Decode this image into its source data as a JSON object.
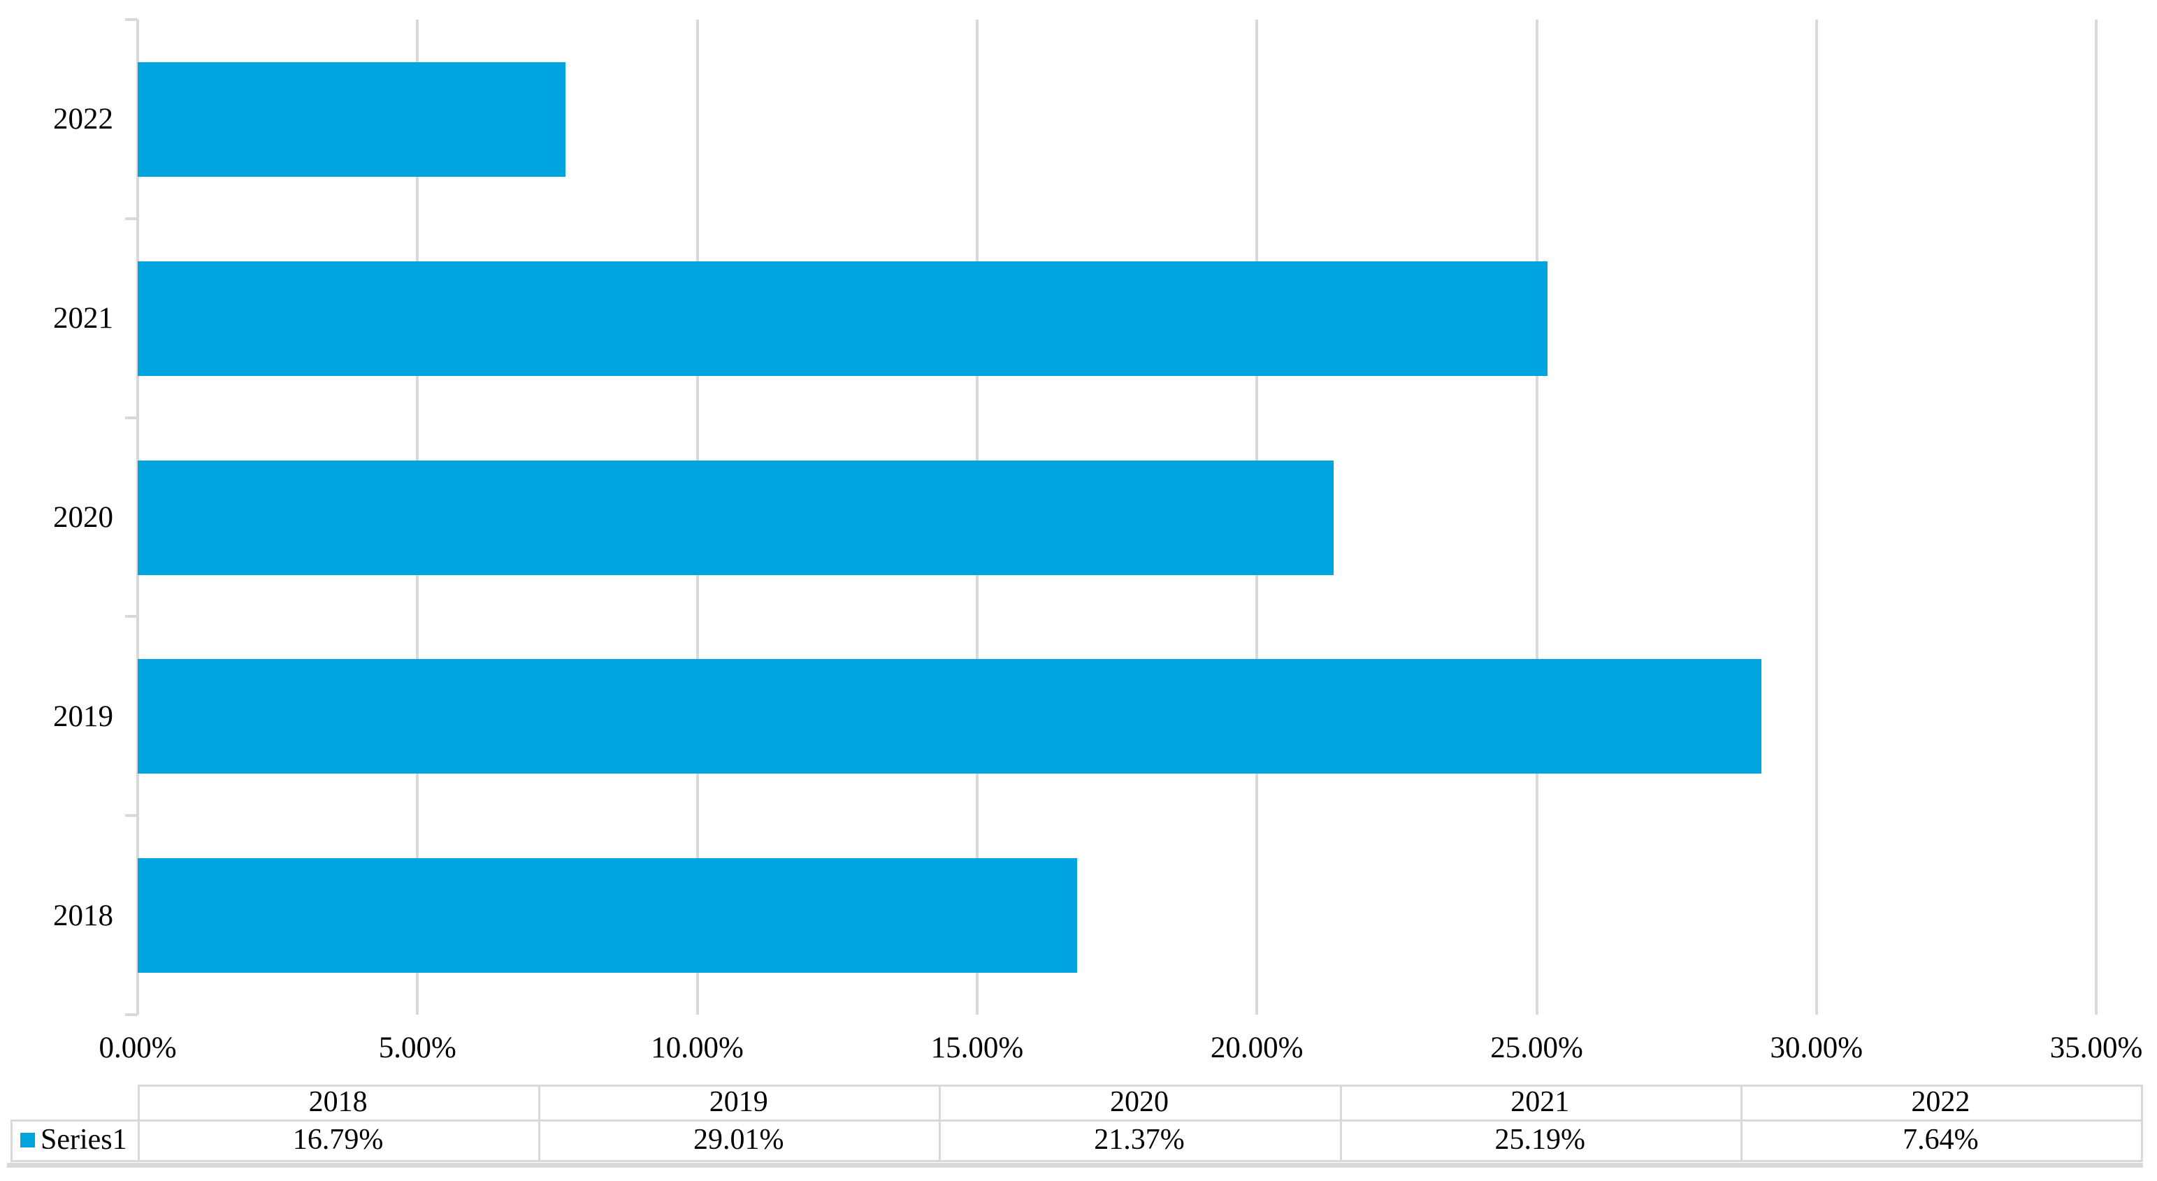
{
  "chart_data": {
    "type": "bar",
    "orientation": "horizontal",
    "title": "",
    "xlabel": "",
    "ylabel": "",
    "categories": [
      "2018",
      "2019",
      "2020",
      "2021",
      "2022"
    ],
    "series": [
      {
        "name": "Series1",
        "values": [
          16.79,
          29.01,
          21.37,
          25.19,
          7.64
        ],
        "value_labels": [
          "16.79%",
          "29.01%",
          "21.37%",
          "25.19%",
          "7.64%"
        ]
      }
    ],
    "category_order_top_to_bottom": [
      "2022",
      "2021",
      "2020",
      "2019",
      "2018"
    ],
    "x_axis": {
      "tick_values": [
        0,
        5,
        10,
        15,
        20,
        25,
        30,
        35
      ],
      "tick_labels": [
        "0.00%",
        "5.00%",
        "10.00%",
        "15.00%",
        "20.00%",
        "25.00%",
        "30.00%",
        "35.00%"
      ],
      "gridlines": "vertical-major",
      "unit": "percent"
    },
    "legend": {
      "position": "data-table-left",
      "entries": [
        {
          "label": "Series1",
          "color": "#00A4DE"
        }
      ]
    },
    "data_table": {
      "shown": true,
      "header": [
        "2018",
        "2019",
        "2020",
        "2021",
        "2022"
      ],
      "rows": [
        {
          "legend_label": "Series1",
          "values": [
            "16.79%",
            "29.01%",
            "21.37%",
            "25.19%",
            "7.64%"
          ]
        }
      ]
    },
    "colors": {
      "bar_fill": "#00A4DE",
      "gridline": "#D9D9D9",
      "axis_line": "#D9D9D9",
      "table_border": "#D9D9D9",
      "text": "#000000",
      "background": "#FFFFFF"
    }
  }
}
